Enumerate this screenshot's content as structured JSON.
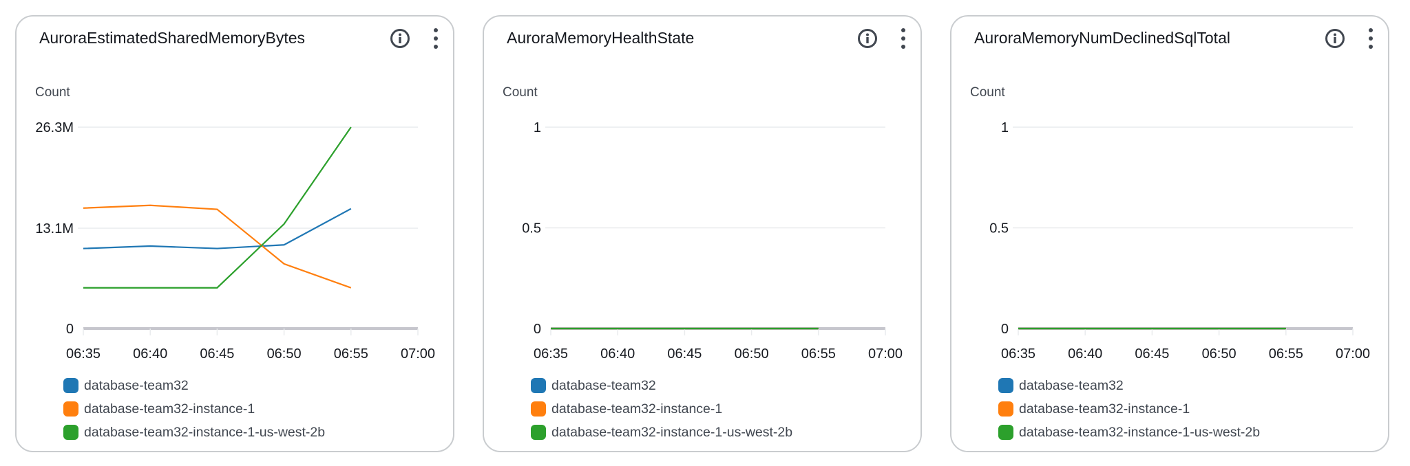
{
  "legend": [
    {
      "name": "database-team32",
      "color": "#1f77b4"
    },
    {
      "name": "database-team32-instance-1",
      "color": "#ff7f0e"
    },
    {
      "name": "database-team32-instance-1-us-west-2b",
      "color": "#2ca02c"
    }
  ],
  "icons": {
    "info": "info-circle-icon",
    "more": "vertical-ellipsis-icon"
  },
  "chart_data": [
    {
      "type": "line",
      "title": "AuroraEstimatedSharedMemoryBytes",
      "ylabel": "Count",
      "x": [
        "06:35",
        "06:40",
        "06:45",
        "06:50",
        "06:55"
      ],
      "xticks": [
        "06:35",
        "06:40",
        "06:45",
        "06:50",
        "06:55",
        "07:00"
      ],
      "yticks": [
        {
          "v": 0,
          "label": "0"
        },
        {
          "v": 13.1,
          "label": "13.1M"
        },
        {
          "v": 26.3,
          "label": "26.3M"
        }
      ],
      "ylim": [
        0,
        26.3
      ],
      "unit_scale": "M",
      "grid": true,
      "legend_position": "bottom",
      "series": [
        {
          "name": "database-team32",
          "color": "#1f77b4",
          "values": [
            10.45,
            10.77,
            10.45,
            10.93,
            15.65
          ]
        },
        {
          "name": "database-team32-instance-1",
          "color": "#ff7f0e",
          "values": [
            15.73,
            16.09,
            15.57,
            8.45,
            5.32
          ]
        },
        {
          "name": "database-team32-instance-1-us-west-2b",
          "color": "#2ca02c",
          "values": [
            5.32,
            5.32,
            5.32,
            13.65,
            26.3
          ]
        }
      ]
    },
    {
      "type": "line",
      "title": "AuroraMemoryHealthState",
      "ylabel": "Count",
      "x": [
        "06:35",
        "06:40",
        "06:45",
        "06:50",
        "06:55"
      ],
      "xticks": [
        "06:35",
        "06:40",
        "06:45",
        "06:50",
        "06:55",
        "07:00"
      ],
      "yticks": [
        {
          "v": 0,
          "label": "0"
        },
        {
          "v": 0.5,
          "label": "0.5"
        },
        {
          "v": 1,
          "label": "1"
        }
      ],
      "ylim": [
        0,
        1
      ],
      "grid": true,
      "legend_position": "bottom",
      "series": [
        {
          "name": "database-team32",
          "color": "#1f77b4",
          "values": [
            0,
            0,
            0,
            0,
            0
          ]
        },
        {
          "name": "database-team32-instance-1",
          "color": "#ff7f0e",
          "values": [
            0,
            0,
            0,
            0,
            0
          ]
        },
        {
          "name": "database-team32-instance-1-us-west-2b",
          "color": "#2ca02c",
          "values": [
            0,
            0,
            0,
            0,
            0
          ]
        }
      ]
    },
    {
      "type": "line",
      "title": "AuroraMemoryNumDeclinedSqlTotal",
      "ylabel": "Count",
      "x": [
        "06:35",
        "06:40",
        "06:45",
        "06:50",
        "06:55"
      ],
      "xticks": [
        "06:35",
        "06:40",
        "06:45",
        "06:50",
        "06:55",
        "07:00"
      ],
      "yticks": [
        {
          "v": 0,
          "label": "0"
        },
        {
          "v": 0.5,
          "label": "0.5"
        },
        {
          "v": 1,
          "label": "1"
        }
      ],
      "ylim": [
        0,
        1
      ],
      "grid": true,
      "legend_position": "bottom",
      "series": [
        {
          "name": "database-team32",
          "color": "#1f77b4",
          "values": [
            0,
            0,
            0,
            0,
            0
          ]
        },
        {
          "name": "database-team32-instance-1",
          "color": "#ff7f0e",
          "values": [
            0,
            0,
            0,
            0,
            0
          ]
        },
        {
          "name": "database-team32-instance-1-us-west-2b",
          "color": "#2ca02c",
          "values": [
            0,
            0,
            0,
            0,
            0
          ]
        }
      ]
    }
  ]
}
